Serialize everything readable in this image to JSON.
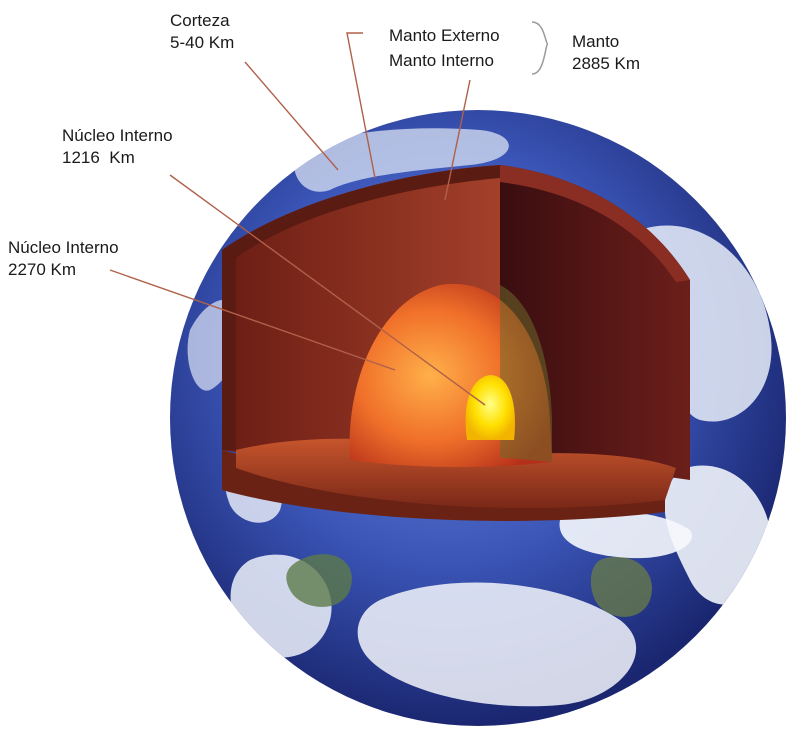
{
  "labels": {
    "crust": {
      "name": "Corteza",
      "value": "5-40 Km"
    },
    "outer_mantle": "Manto Externo",
    "inner_mantle": "Manto Interno",
    "mantle": {
      "name": "Manto",
      "value": "2885 Km"
    },
    "inner_core": {
      "name": "Núcleo Interno",
      "value": "1216  Km"
    },
    "outer_core": {
      "name": "Núcleo Interno",
      "value": "2270 Km"
    }
  },
  "colors": {
    "ocean": "#3b56b8",
    "ocean_dark": "#1f2f82",
    "cloud": "#eef2fa",
    "crust_cut": "#7a2a1a",
    "mantle_outer": "#8e3322",
    "mantle_inner": "#a94127",
    "outer_core": "#e8622a",
    "inner_core": "#ffe000",
    "leader_line": "#b0604a"
  }
}
